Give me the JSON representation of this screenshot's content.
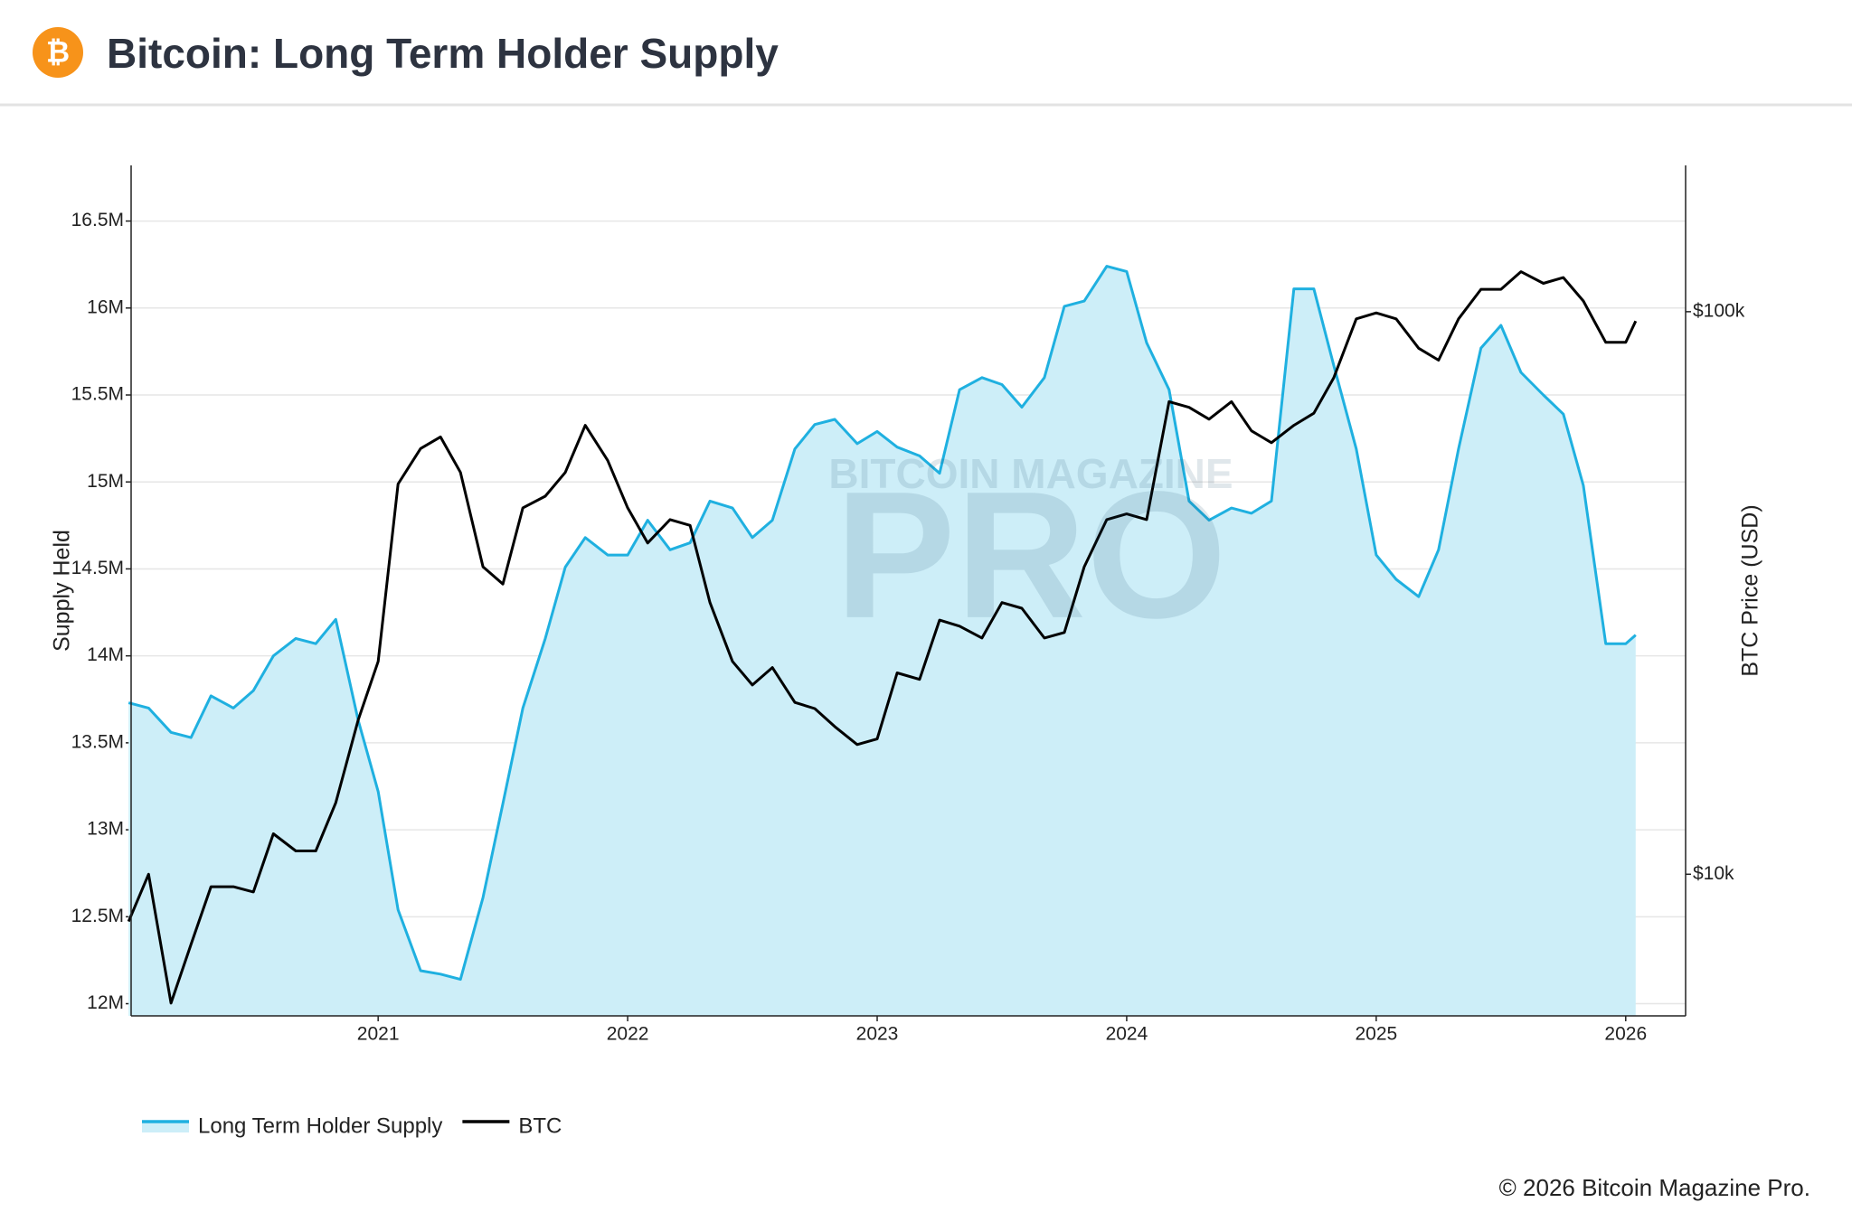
{
  "logo": "₿",
  "title": "Bitcoin: Long Term Holder Supply",
  "copyright": "© 2026 Bitcoin Magazine Pro.",
  "watermark": {
    "top": "BITCOIN MAGAZINE",
    "main": "PRO"
  },
  "chart_data": {
    "type": "line",
    "x": [
      2020.0,
      2020.08,
      2020.17,
      2020.25,
      2020.33,
      2020.42,
      2020.5,
      2020.58,
      2020.67,
      2020.75,
      2020.83,
      2020.92,
      2021.0,
      2021.08,
      2021.17,
      2021.25,
      2021.33,
      2021.42,
      2021.5,
      2021.58,
      2021.67,
      2021.75,
      2021.83,
      2021.92,
      2022.0,
      2022.08,
      2022.17,
      2022.25,
      2022.33,
      2022.42,
      2022.5,
      2022.58,
      2022.67,
      2022.75,
      2022.83,
      2022.92,
      2023.0,
      2023.08,
      2023.17,
      2023.25,
      2023.33,
      2023.42,
      2023.5,
      2023.58,
      2023.67,
      2023.75,
      2023.83,
      2023.92,
      2024.0,
      2024.08,
      2024.17,
      2024.25,
      2024.33,
      2024.42,
      2024.5,
      2024.58,
      2024.67,
      2024.75,
      2024.83,
      2024.92,
      2025.0,
      2025.08,
      2025.17,
      2025.25,
      2025.33,
      2025.42,
      2025.5,
      2025.58,
      2025.67,
      2025.75,
      2025.83,
      2025.92,
      2026.0,
      2026.04
    ],
    "series": [
      {
        "name": "Long Term Holder Supply",
        "color": "#1fb0e0",
        "fill": "#cdeef8",
        "values": [
          13730000,
          13700000,
          13560000,
          13530000,
          13770000,
          13700000,
          13800000,
          14000000,
          14100000,
          14070000,
          14210000,
          13630000,
          13220000,
          12540000,
          12190000,
          12170000,
          12140000,
          12610000,
          13150000,
          13700000,
          14100000,
          14510000,
          14680000,
          14580000,
          14580000,
          14780000,
          14610000,
          14650000,
          14890000,
          14850000,
          14680000,
          14780000,
          15190000,
          15330000,
          15360000,
          15220000,
          15290000,
          15200000,
          15150000,
          15050000,
          15530000,
          15600000,
          15560000,
          15430000,
          15600000,
          16010000,
          16040000,
          16240000,
          16210000,
          15800000,
          15530000,
          14890000,
          14780000,
          14850000,
          14820000,
          14890000,
          16110000,
          16110000,
          15670000,
          15190000,
          14580000,
          14440000,
          14340000,
          14610000,
          15190000,
          15770000,
          15900000,
          15630000,
          15500000,
          15390000,
          14980000,
          14070000,
          14070000,
          14120000
        ]
      },
      {
        "name": "BTC",
        "color": "#000000",
        "axis": "y2",
        "values": [
          8240,
          10000,
          5900,
          7500,
          9500,
          9500,
          9300,
          11800,
          11000,
          11000,
          13400,
          18800,
          23900,
          49400,
          57100,
          59900,
          51800,
          35200,
          32800,
          44800,
          47000,
          51800,
          62800,
          54400,
          44800,
          38800,
          42700,
          41700,
          30400,
          23900,
          21700,
          23300,
          20200,
          19700,
          18300,
          17000,
          17400,
          22800,
          22200,
          28300,
          27600,
          26300,
          30400,
          29700,
          26300,
          26900,
          35200,
          42700,
          43700,
          42700,
          69200,
          67600,
          64400,
          69200,
          61400,
          58500,
          62800,
          66000,
          76300,
          97100,
          99500,
          97100,
          86100,
          82000,
          97100,
          109600,
          109600,
          117800,
          112300,
          115000,
          104500,
          88200,
          88200,
          96200
        ]
      }
    ],
    "xlim": [
      2020.01,
      2026.24
    ],
    "xticks": [
      2021,
      2022,
      2023,
      2024,
      2025,
      2026
    ],
    "ylim": [
      11930000,
      16820000
    ],
    "yticks": [
      {
        "value": 12000000,
        "label": "12M"
      },
      {
        "value": 12500000,
        "label": "12.5M"
      },
      {
        "value": 13000000,
        "label": "13M"
      },
      {
        "value": 13500000,
        "label": "13.5M"
      },
      {
        "value": 14000000,
        "label": "14M"
      },
      {
        "value": 14500000,
        "label": "14.5M"
      },
      {
        "value": 15000000,
        "label": "15M"
      },
      {
        "value": 15500000,
        "label": "15.5M"
      },
      {
        "value": 16000000,
        "label": "16M"
      },
      {
        "value": 16500000,
        "label": "16.5M"
      }
    ],
    "y2lim": [
      5600,
      182000
    ],
    "y2log": true,
    "y2ticks": [
      {
        "value": 10000,
        "label": "$10k"
      },
      {
        "value": 100000,
        "label": "$100k"
      }
    ],
    "ylabel": "Supply Held",
    "y2label": "BTC Price (USD)",
    "grid": true,
    "legend": "bottom-left"
  }
}
